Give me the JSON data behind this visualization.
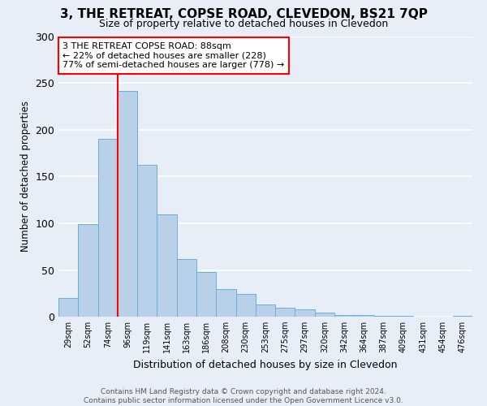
{
  "title": "3, THE RETREAT, COPSE ROAD, CLEVEDON, BS21 7QP",
  "subtitle": "Size of property relative to detached houses in Clevedon",
  "xlabel": "Distribution of detached houses by size in Clevedon",
  "ylabel": "Number of detached properties",
  "bin_labels": [
    "29sqm",
    "52sqm",
    "74sqm",
    "96sqm",
    "119sqm",
    "141sqm",
    "163sqm",
    "186sqm",
    "208sqm",
    "230sqm",
    "253sqm",
    "275sqm",
    "297sqm",
    "320sqm",
    "342sqm",
    "364sqm",
    "387sqm",
    "409sqm",
    "431sqm",
    "454sqm",
    "476sqm"
  ],
  "bar_heights": [
    20,
    99,
    190,
    242,
    163,
    110,
    62,
    48,
    30,
    24,
    13,
    10,
    8,
    4,
    2,
    2,
    1,
    1,
    0,
    0,
    1
  ],
  "bar_color": "#b8d0e8",
  "bar_edge_color": "#6aaed6",
  "reference_line_color": "red",
  "annotation_line1": "3 THE RETREAT COPSE ROAD: 88sqm",
  "annotation_line2": "← 22% of detached houses are smaller (228)",
  "annotation_line3": "77% of semi-detached houses are larger (778) →",
  "annotation_box_color": "white",
  "annotation_box_edge_color": "red",
  "ylim": [
    0,
    300
  ],
  "yticks": [
    0,
    50,
    100,
    150,
    200,
    250,
    300
  ],
  "footer_text": "Contains HM Land Registry data © Crown copyright and database right 2024.\nContains public sector information licensed under the Open Government Licence v3.0.",
  "bg_color": "#e8eef8",
  "grid_color": "white",
  "title_fontsize": 11,
  "subtitle_fontsize": 9
}
